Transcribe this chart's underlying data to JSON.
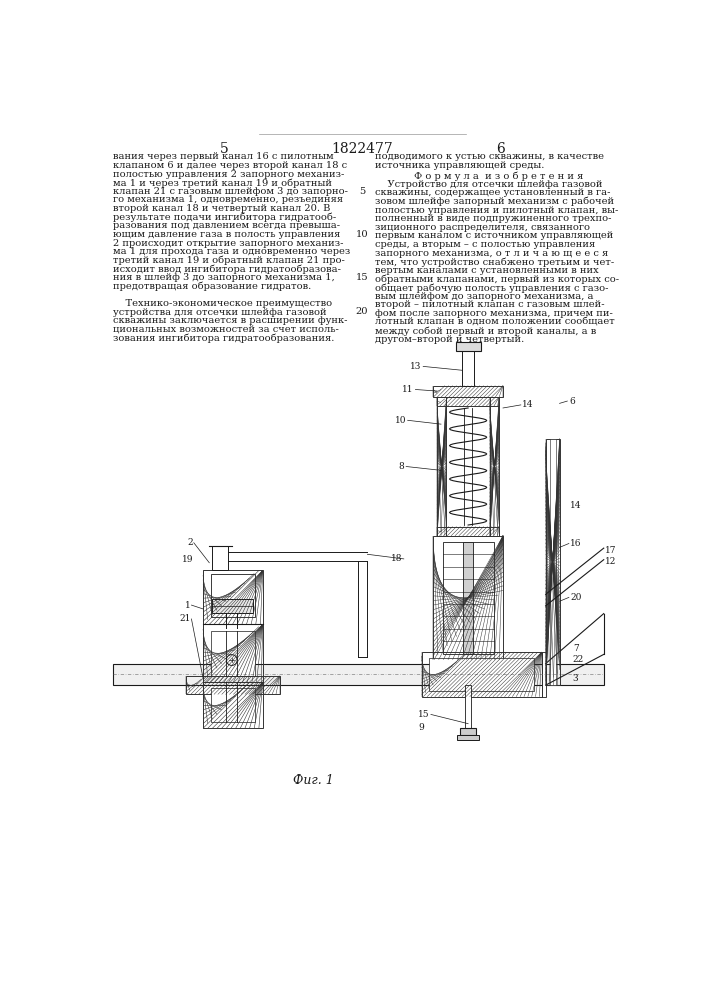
{
  "page_num_left": "5",
  "page_num_center": "1822477",
  "page_num_right": "6",
  "left_col_lines": [
    "вания через первый канал 16 с пилотным",
    "клапаном 6 и далее через второй канал 18 с",
    "полостью управления 2 запорного механиз-",
    "ма 1 и через третий канал 19 и обратный",
    "клапан 21 с газовым шлейфом 3 до запорно-",
    "го механизма 1, одновременно, резъединяя",
    "второй канал 18 и четвертый канал 20. В",
    "результате подачи ингибитора гидратооб-",
    "разования под давлением всегда превыша-",
    "ющим давление газа в полость управления",
    "2 происходит открытие запорного механиз-",
    "ма 1 для прохода газа и одновременно через",
    "третий канал 19 и обратный клапан 21 про-",
    "исходит ввод ингибитора гидратообразова-",
    "ния в шлейф 3 до запорного механизма 1,",
    "предотвращая образование гидратов.",
    "",
    "    Технико-экономическое преимущество",
    "устройства для отсечки шлейфа газовой",
    "скважины заключается в расширении функ-",
    "циональных возможностей за счет исполь-",
    "зования ингибитора гидратообразования."
  ],
  "right_col_lines_top": [
    "подводимого к устью скважины, в качестве",
    "источника управляющей среды."
  ],
  "formula_header": "Ф о р м у л а  и з о б р е т е н и я",
  "right_col_lines_body": [
    "    Устройство для отсечки шлейфа газовой",
    "скважины, содержащее установленный в га-",
    "зовом шлейфе запорный механизм с рабочей",
    "полостью управления и пилотный клапан, вы-",
    "полненный в виде подпружиненного трехпо-",
    "зиционного распределителя, связанного",
    "первым каналом с источником управляющей",
    "среды, а вторым – с полостью управления",
    "запорного механизма, о т л и ч а ю щ е е с я",
    "тем, что устройство снабжено третьим и чет-",
    "вертым каналами с установленными в них",
    "обратными клапанами, первый из которых со-",
    "общает рабочую полость управления с газо-",
    "вым шлейфом до запорного механизма, а",
    "второй – пилотный клапан с газовым шлей-",
    "фом после запорного механизма, причем пи-",
    "лотный клапан в одном положении сообщает",
    "между собой первый и второй каналы, а в",
    "другом–второй и четвертый."
  ],
  "fig_label": "Фиг. 1",
  "bg_color": "#ffffff",
  "fg_color": "#1a1a1a",
  "hatch_color": "#333333"
}
